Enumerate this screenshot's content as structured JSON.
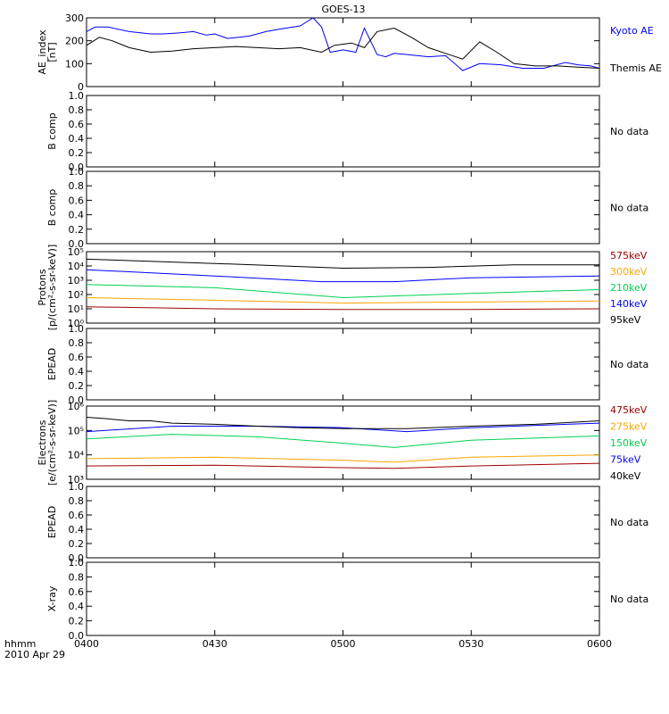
{
  "title": "GOES-13",
  "x_axis": {
    "ticks": [
      "0400",
      "0430",
      "0500",
      "0530",
      "0600"
    ],
    "range_minutes": [
      0,
      120
    ],
    "label_line1": "hhmm",
    "label_line2": "2010 Apr 29"
  },
  "no_data_label": "No data",
  "colors": {
    "black": "#000000",
    "blue": "#0000ff",
    "green": "#00d050",
    "orange": "#ffa500",
    "red": "#a00000"
  },
  "panels": [
    {
      "id": "ae",
      "ylabel_lines": [
        "AE_index",
        "[nT]"
      ]
    },
    {
      "id": "bcomp1",
      "ylabel_lines": [
        "B comp"
      ]
    },
    {
      "id": "bcomp2",
      "ylabel_lines": [
        "B comp"
      ]
    },
    {
      "id": "protons",
      "ylabel_lines": [
        "Protons",
        "[p/(cm²-s-sr-keV)]"
      ]
    },
    {
      "id": "epead1",
      "ylabel_lines": [
        "EPEAD"
      ]
    },
    {
      "id": "electrons",
      "ylabel_lines": [
        "Electrons",
        "[e/(cm²-s-sr-keV)]"
      ]
    },
    {
      "id": "epead2",
      "ylabel_lines": [
        "EPEAD"
      ]
    },
    {
      "id": "xray",
      "ylabel_lines": [
        "X-ray"
      ]
    }
  ],
  "chart_data": [
    {
      "type": "line",
      "panel": "ae",
      "ylim": [
        0,
        300
      ],
      "yticks": [
        "0",
        "100",
        "200",
        "300"
      ],
      "x_unit": "minutes after 0400",
      "series": [
        {
          "name": "Kyoto AE",
          "color": "blue",
          "x": [
            0,
            2,
            5,
            10,
            15,
            18,
            22,
            25,
            28,
            30,
            33,
            38,
            42,
            45,
            50,
            53,
            55,
            57,
            60,
            63,
            65,
            68,
            70,
            72,
            75,
            80,
            84,
            88,
            92,
            97,
            102,
            107,
            112,
            115,
            118,
            120
          ],
          "y": [
            240,
            260,
            260,
            240,
            230,
            230,
            235,
            240,
            225,
            230,
            210,
            220,
            240,
            250,
            265,
            300,
            260,
            150,
            160,
            150,
            255,
            140,
            130,
            145,
            140,
            130,
            135,
            70,
            100,
            95,
            80,
            80,
            105,
            95,
            90,
            80
          ]
        },
        {
          "name": "Themis AE",
          "color": "black",
          "x": [
            0,
            3,
            6,
            10,
            15,
            20,
            25,
            30,
            35,
            40,
            45,
            50,
            55,
            58,
            62,
            65,
            68,
            72,
            76,
            80,
            84,
            88,
            92,
            96,
            100,
            105,
            110,
            115,
            120
          ],
          "y": [
            180,
            215,
            200,
            170,
            150,
            155,
            165,
            170,
            175,
            170,
            165,
            170,
            150,
            180,
            190,
            170,
            240,
            255,
            215,
            170,
            145,
            120,
            195,
            150,
            100,
            90,
            90,
            85,
            80
          ]
        }
      ]
    },
    {
      "type": "line",
      "panel": "bcomp1",
      "ylim": [
        0,
        1
      ],
      "yticks": [
        "0.0",
        "0.2",
        "0.4",
        "0.6",
        "0.8",
        "1.0"
      ],
      "series": []
    },
    {
      "type": "line",
      "panel": "bcomp2",
      "ylim": [
        0,
        1
      ],
      "yticks": [
        "0.0",
        "0.2",
        "0.4",
        "0.6",
        "0.8",
        "1.0"
      ],
      "series": []
    },
    {
      "type": "line",
      "panel": "protons",
      "log": true,
      "ylim": [
        1,
        100000
      ],
      "yticks": [
        "10⁰",
        "10¹",
        "10²",
        "10³",
        "10⁴",
        "10⁵"
      ],
      "x_unit": "minutes after 0400",
      "series": [
        {
          "name": "575keV",
          "color": "red",
          "x": [
            0,
            30,
            60,
            90,
            120
          ],
          "y": [
            14,
            10,
            9,
            9,
            10
          ]
        },
        {
          "name": "300keV",
          "color": "orange",
          "x": [
            0,
            30,
            60,
            90,
            120
          ],
          "y": [
            60,
            40,
            25,
            30,
            35
          ]
        },
        {
          "name": "210keV",
          "color": "green",
          "x": [
            0,
            30,
            60,
            90,
            120
          ],
          "y": [
            500,
            300,
            60,
            120,
            220
          ]
        },
        {
          "name": "140keV",
          "color": "blue",
          "x": [
            0,
            30,
            55,
            72,
            90,
            120
          ],
          "y": [
            5500,
            2000,
            800,
            800,
            1500,
            2000
          ]
        },
        {
          "name": "95keV",
          "color": "black",
          "x": [
            0,
            30,
            60,
            80,
            100,
            120
          ],
          "y": [
            30000,
            15000,
            7000,
            8000,
            12000,
            12000
          ]
        }
      ]
    },
    {
      "type": "line",
      "panel": "epead1",
      "ylim": [
        0,
        1
      ],
      "yticks": [
        "0.0",
        "0.2",
        "0.4",
        "0.6",
        "0.8",
        "1.0"
      ],
      "series": []
    },
    {
      "type": "line",
      "panel": "electrons",
      "log": true,
      "ylim": [
        1000,
        1000000
      ],
      "yticks": [
        "10³",
        "10⁴",
        "10⁵",
        "10⁶"
      ],
      "x_unit": "minutes after 0400",
      "series": [
        {
          "name": "475keV",
          "color": "red",
          "x": [
            0,
            30,
            60,
            72,
            90,
            120
          ],
          "y": [
            3500,
            3800,
            3000,
            2800,
            3500,
            4500
          ]
        },
        {
          "name": "275keV",
          "color": "orange",
          "x": [
            0,
            30,
            60,
            72,
            90,
            120
          ],
          "y": [
            7000,
            8000,
            6000,
            5000,
            8000,
            10000
          ]
        },
        {
          "name": "150keV",
          "color": "green",
          "x": [
            0,
            20,
            40,
            60,
            72,
            90,
            120
          ],
          "y": [
            45000,
            70000,
            55000,
            30000,
            20000,
            40000,
            60000
          ]
        },
        {
          "name": "75keV",
          "color": "blue",
          "x": [
            0,
            20,
            40,
            60,
            75,
            90,
            120
          ],
          "y": [
            90000,
            150000,
            150000,
            130000,
            90000,
            130000,
            200000
          ]
        },
        {
          "name": "40keV",
          "color": "black",
          "x": [
            0,
            5,
            10,
            15,
            20,
            30,
            40,
            50,
            60,
            75,
            90,
            105,
            120
          ],
          "y": [
            350000,
            300000,
            250000,
            250000,
            200000,
            180000,
            150000,
            130000,
            120000,
            120000,
            150000,
            180000,
            250000
          ]
        }
      ]
    },
    {
      "type": "line",
      "panel": "epead2",
      "ylim": [
        0,
        1
      ],
      "yticks": [
        "0.0",
        "0.2",
        "0.4",
        "0.6",
        "0.8",
        "1.0"
      ],
      "series": []
    },
    {
      "type": "line",
      "panel": "xray",
      "ylim": [
        0,
        1
      ],
      "yticks": [
        "0.0",
        "0.2",
        "0.4",
        "0.6",
        "0.8",
        "1.0"
      ],
      "series": []
    }
  ]
}
